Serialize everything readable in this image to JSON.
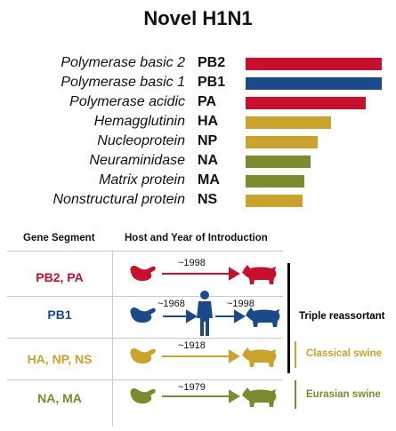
{
  "title": "Novel H1N1",
  "segments": [
    {
      "name": "Polymerase basic 2",
      "abbr": "PB2",
      "color": "#c8102e",
      "length_fraction": 1.0
    },
    {
      "name": "Polymerase basic 1",
      "abbr": "PB1",
      "color": "#1a4a8a",
      "length_fraction": 1.0
    },
    {
      "name": "Polymerase acidic",
      "abbr": "PA",
      "color": "#c8102e",
      "length_fraction": 0.88
    },
    {
      "name": "Hemagglutinin",
      "abbr": "HA",
      "color": "#c9a32c",
      "length_fraction": 0.63
    },
    {
      "name": "Nucleoprotein",
      "abbr": "NP",
      "color": "#c9a32c",
      "length_fraction": 0.53
    },
    {
      "name": "Neuraminidase",
      "abbr": "NA",
      "color": "#7e8a2e",
      "length_fraction": 0.48
    },
    {
      "name": "Matrix protein",
      "abbr": "MA",
      "color": "#7e8a2e",
      "length_fraction": 0.43
    },
    {
      "name": "Nonstructural protein",
      "abbr": "NS",
      "color": "#c9a32c",
      "length_fraction": 0.42
    }
  ],
  "table": {
    "col_segment": "Gene Segment",
    "col_host": "Host and Year of Introduction",
    "rows": [
      {
        "label": "PB2, PA",
        "color": "#c8102e",
        "years": [
          "~1998"
        ],
        "path": [
          "bird-icon",
          "pig-icon"
        ]
      },
      {
        "label": "PB1",
        "color": "#1a4a8a",
        "years": [
          "~1968",
          "~1998"
        ],
        "path": [
          "bird-icon",
          "human-icon",
          "pig-icon"
        ]
      },
      {
        "label": "HA, NP, NS",
        "color": "#c9a32c",
        "years": [
          "~1918"
        ],
        "path": [
          "bird-icon",
          "pig-icon"
        ]
      },
      {
        "label": "NA, MA",
        "color": "#7e8a2e",
        "years": [
          "~1979"
        ],
        "path": [
          "bird-icon",
          "pig-icon"
        ]
      }
    ]
  },
  "brackets": [
    {
      "label": "Triple reassortant",
      "color": "#000000"
    },
    {
      "label": "Classical swine",
      "color": "#c9a32c"
    },
    {
      "label": "Eurasian swine",
      "color": "#7e8a2e"
    }
  ]
}
